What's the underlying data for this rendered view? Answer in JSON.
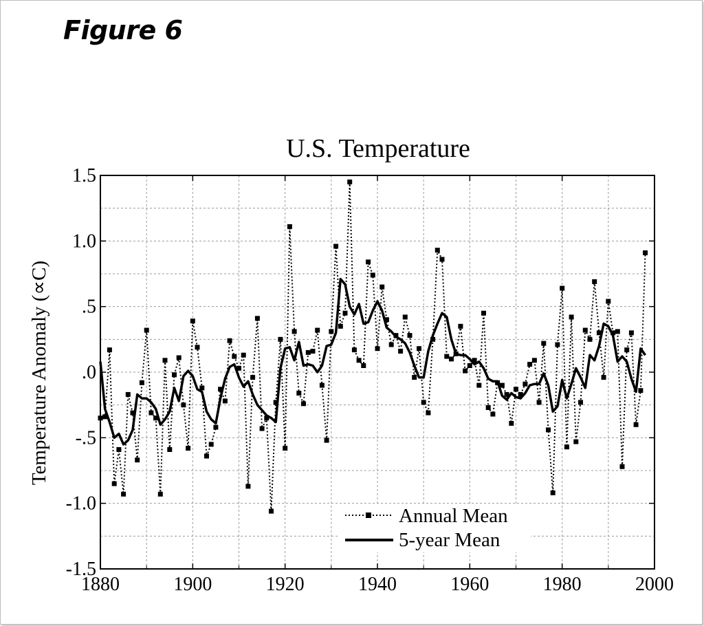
{
  "figure_label": "Figure 6",
  "chart_data": {
    "type": "line",
    "title": "U.S. Temperature",
    "xlabel": "",
    "ylabel": "Temperature Anomaly (∝C)",
    "xlim": [
      1880,
      2000
    ],
    "ylim": [
      -1.5,
      1.5
    ],
    "x_ticks": [
      1880,
      1900,
      1920,
      1940,
      1960,
      1980,
      2000
    ],
    "x_tick_labels": [
      "1880",
      "1900",
      "1920",
      "1940",
      "1960",
      "1980",
      "2000"
    ],
    "y_ticks": [
      1.5,
      1.0,
      0.5,
      0.0,
      -0.5,
      -1.0,
      -1.5
    ],
    "y_tick_labels": [
      "1.5",
      "1.0",
      ".5",
      ".0",
      "-.5",
      "-1.0",
      "-1.5"
    ],
    "grid": true,
    "legend_position": "bottom-center",
    "series": [
      {
        "name": "Annual Mean",
        "style": "dotted-square-markers",
        "color": "#000000",
        "x": [
          1880,
          1881,
          1882,
          1883,
          1884,
          1885,
          1886,
          1887,
          1888,
          1889,
          1890,
          1891,
          1892,
          1893,
          1894,
          1895,
          1896,
          1897,
          1898,
          1899,
          1900,
          1901,
          1902,
          1903,
          1904,
          1905,
          1906,
          1907,
          1908,
          1909,
          1910,
          1911,
          1912,
          1913,
          1914,
          1915,
          1916,
          1917,
          1918,
          1919,
          1920,
          1921,
          1922,
          1923,
          1924,
          1925,
          1926,
          1927,
          1928,
          1929,
          1930,
          1931,
          1932,
          1933,
          1934,
          1935,
          1936,
          1937,
          1938,
          1939,
          1940,
          1941,
          1942,
          1943,
          1944,
          1945,
          1946,
          1947,
          1948,
          1949,
          1950,
          1951,
          1952,
          1953,
          1954,
          1955,
          1956,
          1957,
          1958,
          1959,
          1960,
          1961,
          1962,
          1963,
          1964,
          1965,
          1966,
          1967,
          1968,
          1969,
          1970,
          1971,
          1972,
          1973,
          1974,
          1975,
          1976,
          1977,
          1978,
          1979,
          1980,
          1981,
          1982,
          1983,
          1984,
          1985,
          1986,
          1987,
          1988,
          1989,
          1990,
          1991,
          1992,
          1993,
          1994,
          1995,
          1996,
          1997,
          1998
        ],
        "y": [
          -0.35,
          -0.34,
          0.17,
          -0.85,
          -0.59,
          -0.93,
          -0.17,
          -0.31,
          -0.67,
          -0.08,
          0.32,
          -0.31,
          -0.35,
          -0.93,
          0.09,
          -0.59,
          -0.02,
          0.11,
          -0.25,
          -0.58,
          0.39,
          0.19,
          -0.12,
          -0.64,
          -0.55,
          -0.42,
          -0.13,
          -0.22,
          0.24,
          0.12,
          0.03,
          0.13,
          -0.87,
          -0.04,
          0.41,
          -0.43,
          -0.35,
          -1.06,
          -0.23,
          0.25,
          -0.58,
          1.11,
          0.31,
          -0.16,
          -0.24,
          0.15,
          0.16,
          0.32,
          -0.1,
          -0.52,
          0.31,
          0.96,
          0.35,
          0.45,
          1.45,
          0.17,
          0.09,
          0.05,
          0.84,
          0.74,
          0.18,
          0.65,
          0.4,
          0.21,
          0.28,
          0.16,
          0.42,
          0.28,
          -0.04,
          0.18,
          -0.23,
          -0.31,
          0.25,
          0.93,
          0.86,
          0.12,
          0.1,
          0.14,
          0.35,
          0.01,
          0.05,
          0.09,
          -0.1,
          0.45,
          -0.27,
          -0.32,
          -0.08,
          -0.1,
          -0.17,
          -0.39,
          -0.13,
          -0.17,
          -0.09,
          0.06,
          0.09,
          -0.23,
          0.22,
          -0.44,
          -0.92,
          0.21,
          0.64,
          -0.57,
          0.42,
          -0.53,
          -0.23,
          0.32,
          0.25,
          0.69,
          0.3,
          -0.04,
          0.54,
          0.3,
          0.31,
          -0.72,
          0.17,
          0.3,
          -0.4,
          -0.14,
          0.91
        ]
      },
      {
        "name": "5-year Mean",
        "style": "solid-thick",
        "color": "#000000",
        "x": [
          1880,
          1881,
          1882,
          1883,
          1884,
          1885,
          1886,
          1887,
          1888,
          1889,
          1890,
          1891,
          1892,
          1893,
          1894,
          1895,
          1896,
          1897,
          1898,
          1899,
          1900,
          1901,
          1902,
          1903,
          1904,
          1905,
          1906,
          1907,
          1908,
          1909,
          1910,
          1911,
          1912,
          1913,
          1914,
          1915,
          1916,
          1917,
          1918,
          1919,
          1920,
          1921,
          1922,
          1923,
          1924,
          1925,
          1926,
          1927,
          1928,
          1929,
          1930,
          1931,
          1932,
          1933,
          1934,
          1935,
          1936,
          1937,
          1938,
          1939,
          1940,
          1941,
          1942,
          1943,
          1944,
          1945,
          1946,
          1947,
          1948,
          1949,
          1950,
          1951,
          1952,
          1953,
          1954,
          1955,
          1956,
          1957,
          1958,
          1959,
          1960,
          1961,
          1962,
          1963,
          1964,
          1965,
          1966,
          1967,
          1968,
          1969,
          1970,
          1971,
          1972,
          1973,
          1974,
          1975,
          1976,
          1977,
          1978,
          1979,
          1980,
          1981,
          1982,
          1983,
          1984,
          1985,
          1986,
          1987,
          1988,
          1989,
          1990,
          1991,
          1992,
          1993,
          1994,
          1995,
          1996,
          1997,
          1998
        ],
        "y": [
          0.08,
          -0.28,
          -0.38,
          -0.5,
          -0.47,
          -0.55,
          -0.52,
          -0.44,
          -0.17,
          -0.2,
          -0.2,
          -0.23,
          -0.28,
          -0.4,
          -0.36,
          -0.3,
          -0.12,
          -0.22,
          -0.03,
          0.01,
          -0.03,
          -0.13,
          -0.15,
          -0.3,
          -0.36,
          -0.39,
          -0.2,
          -0.05,
          0.04,
          0.06,
          -0.04,
          -0.11,
          -0.07,
          -0.17,
          -0.25,
          -0.29,
          -0.33,
          -0.35,
          -0.38,
          0.03,
          0.18,
          0.19,
          0.09,
          0.23,
          0.05,
          0.06,
          0.05,
          0.0,
          0.05,
          0.2,
          0.21,
          0.3,
          0.71,
          0.67,
          0.5,
          0.44,
          0.52,
          0.37,
          0.38,
          0.47,
          0.54,
          0.47,
          0.34,
          0.31,
          0.27,
          0.25,
          0.22,
          0.15,
          0.05,
          -0.04,
          -0.04,
          0.16,
          0.28,
          0.37,
          0.45,
          0.42,
          0.25,
          0.14,
          0.13,
          0.13,
          0.1,
          0.06,
          0.08,
          0.03,
          -0.05,
          -0.07,
          -0.07,
          -0.18,
          -0.21,
          -0.16,
          -0.19,
          -0.2,
          -0.16,
          -0.1,
          -0.09,
          -0.09,
          -0.01,
          -0.1,
          -0.3,
          -0.26,
          -0.06,
          -0.2,
          -0.09,
          0.03,
          -0.04,
          -0.12,
          0.13,
          0.09,
          0.2,
          0.37,
          0.35,
          0.28,
          0.08,
          0.12,
          0.08,
          -0.05,
          -0.15,
          0.18,
          0.13
        ]
      }
    ]
  }
}
